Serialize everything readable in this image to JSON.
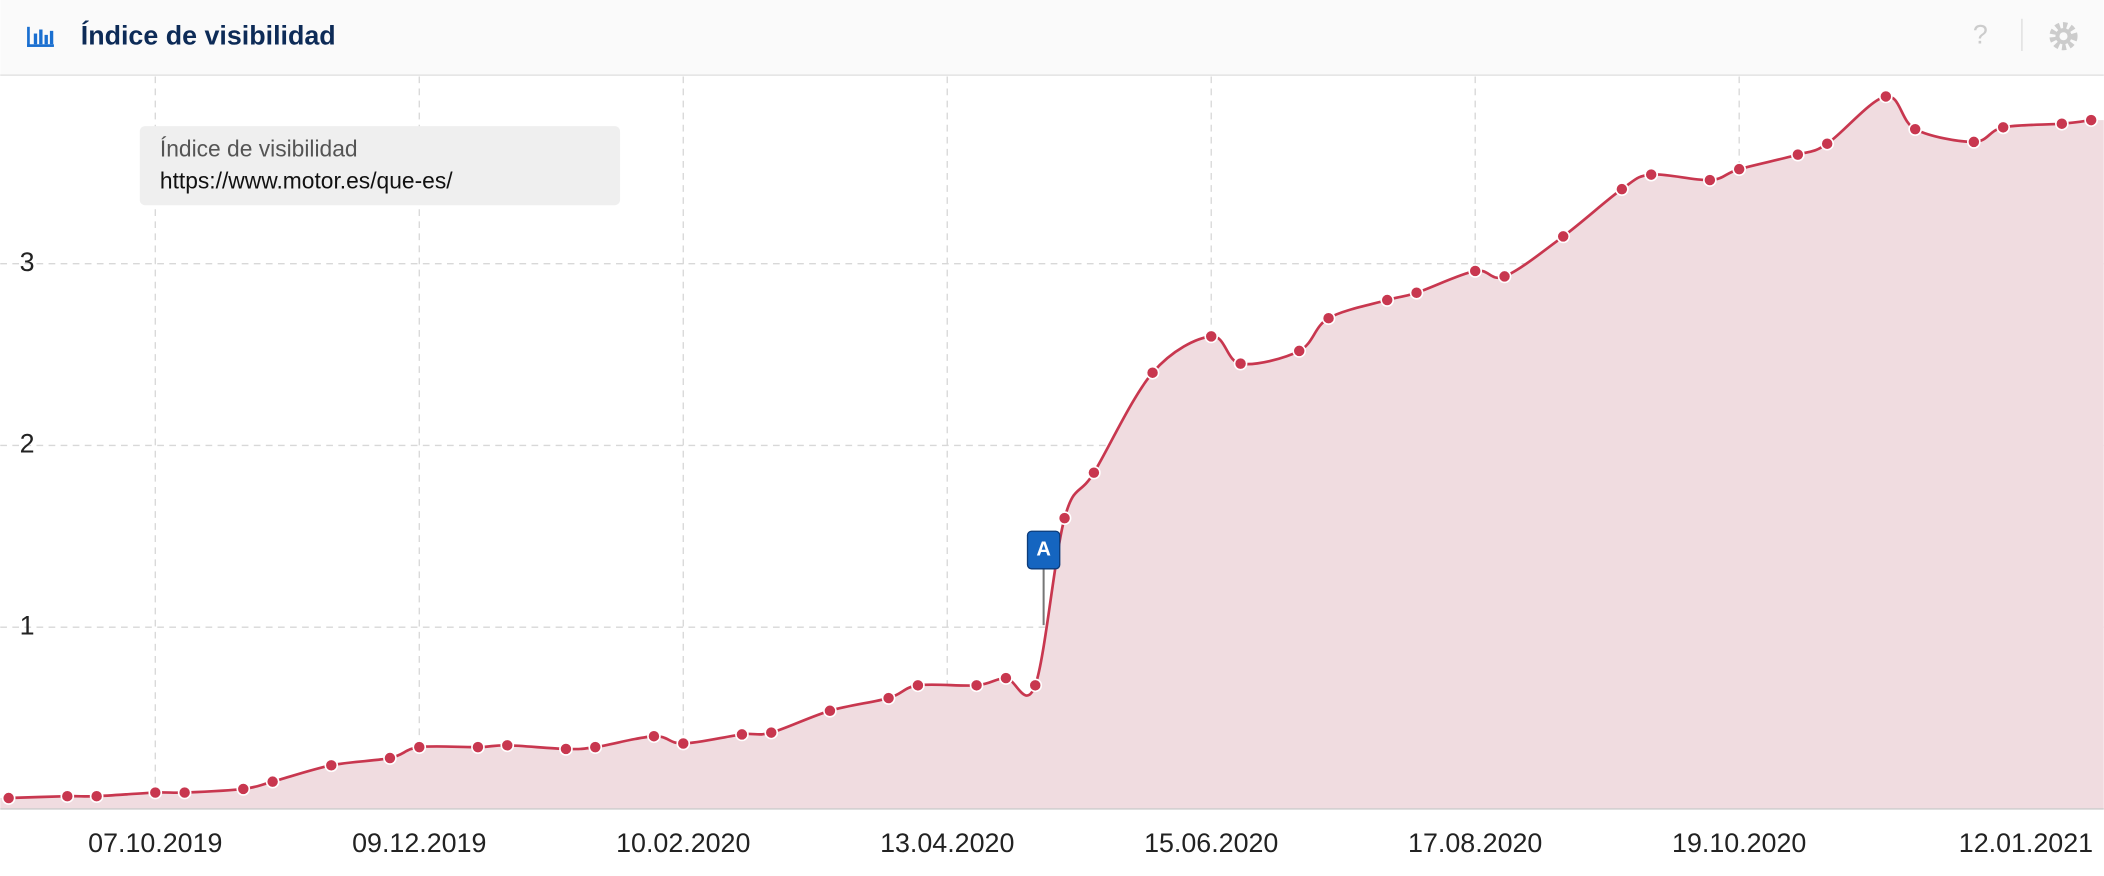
{
  "header": {
    "title": "Índice de visibilidad",
    "help": "?"
  },
  "chart_data": {
    "type": "line",
    "legend_title": "Índice de visibilidad",
    "series": [
      {
        "name": "https://www.motor.es/que-es/",
        "color": "#c8374f",
        "fill": "#f0dce0",
        "x": [
          "02.09.2019",
          "16.09.2019",
          "23.09.2019",
          "07.10.2019",
          "14.10.2019",
          "28.10.2019",
          "04.11.2019",
          "18.11.2019",
          "02.12.2019",
          "09.12.2019",
          "23.12.2019",
          "30.12.2019",
          "13.01.2020",
          "20.01.2020",
          "03.02.2020",
          "10.02.2020",
          "24.02.2020",
          "02.03.2020",
          "16.03.2020",
          "30.03.2020",
          "06.04.2020",
          "20.04.2020",
          "27.04.2020",
          "04.05.2020",
          "11.05.2020",
          "18.05.2020",
          "01.06.2020",
          "15.06.2020",
          "22.06.2020",
          "06.07.2020",
          "13.07.2020",
          "27.07.2020",
          "03.08.2020",
          "17.08.2020",
          "24.08.2020",
          "07.09.2020",
          "21.09.2020",
          "28.09.2020",
          "12.10.2020",
          "19.10.2020",
          "02.11.2020",
          "09.11.2020",
          "23.11.2020",
          "30.11.2020",
          "14.12.2020",
          "21.12.2020",
          "04.01.2021",
          "11.01.2021"
        ],
        "values": [
          0.06,
          0.07,
          0.07,
          0.09,
          0.09,
          0.11,
          0.15,
          0.24,
          0.28,
          0.34,
          0.34,
          0.35,
          0.33,
          0.34,
          0.4,
          0.36,
          0.41,
          0.42,
          0.54,
          0.61,
          0.68,
          0.68,
          0.72,
          0.68,
          1.6,
          1.85,
          2.4,
          2.6,
          2.45,
          2.52,
          2.7,
          2.8,
          2.84,
          2.96,
          2.93,
          3.15,
          3.41,
          3.49,
          3.46,
          3.52,
          3.6,
          3.66,
          3.92,
          3.74,
          3.67,
          3.75,
          3.77,
          3.79
        ]
      }
    ],
    "xlim": [
      "31.08.2019",
      "14.01.2021"
    ],
    "xticks": [
      "07.10.2019",
      "09.12.2019",
      "10.02.2020",
      "13.04.2020",
      "15.06.2020",
      "17.08.2020",
      "19.10.2020",
      "12.01.2021"
    ],
    "ylim": [
      0,
      4.03
    ],
    "yticks": [
      1,
      2,
      3
    ],
    "grid": true,
    "annotations": [
      {
        "x": "06.05.2020",
        "text": "A"
      }
    ]
  }
}
